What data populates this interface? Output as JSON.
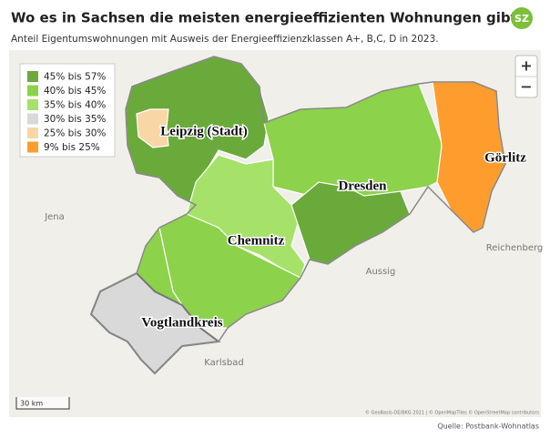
{
  "header": {
    "title": "Wo es in Sachsen die meisten energieeffizienten Wohnungen gibt",
    "subtitle": "Anteil Eigentumswohnungen mit Ausweis der Energieeffizienzklassen A+, B,C, D in 2023.",
    "logo": "SZ"
  },
  "legend": {
    "items": [
      {
        "label": "45% bis 57%",
        "color": "#6aaa3a"
      },
      {
        "label": "40% bis 45%",
        "color": "#8cd24a"
      },
      {
        "label": "35% bis 40%",
        "color": "#a6e26a"
      },
      {
        "label": "30% bis 35%",
        "color": "#d9d9d9"
      },
      {
        "label": "25% bis 30%",
        "color": "#f9d6a5"
      },
      {
        "label": "9% bis 25%",
        "color": "#ff9c2e"
      }
    ]
  },
  "map": {
    "region_labels": [
      "Leipzig (Stadt)",
      "Dresden",
      "Chemnitz",
      "Görlitz",
      "Vogtlandkreis"
    ],
    "place_labels": [
      "Jena",
      "Reichenberg",
      "Aussig",
      "Karlsbad"
    ],
    "scale": "30 km",
    "attribution": "© GeoBasis-DE/BKG 2021 | © OpenMapTiles © OpenStreetMap contributors",
    "zoom": [
      "+",
      "−"
    ]
  },
  "footer": {
    "source": "Quelle: Postbank-Wohnatlas"
  }
}
